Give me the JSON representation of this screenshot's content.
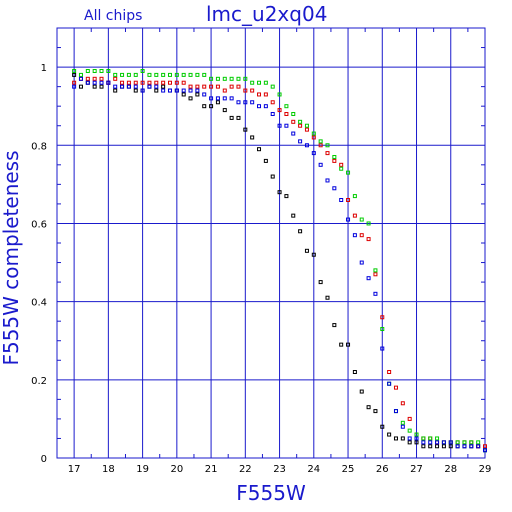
{
  "chart_data": {
    "type": "scatter",
    "title": "lmc_u2xq04",
    "subtitle": "All chips",
    "xlabel": "F555W",
    "ylabel": "F555W completeness",
    "xlim": [
      16.5,
      29
    ],
    "ylim": [
      0,
      1.1
    ],
    "x_ticks": [
      17,
      18,
      19,
      20,
      21,
      22,
      23,
      24,
      25,
      26,
      27,
      28,
      29
    ],
    "y_ticks": [
      0,
      0.2,
      0.4,
      0.6,
      0.8,
      1
    ],
    "y_tick_labels": [
      "0",
      "0.2",
      "0.4",
      "0.6",
      "0.8",
      "1"
    ],
    "grid": true,
    "colors": {
      "grid": "#1a1acc",
      "text": "#1a1acc",
      "black": "#000000",
      "red": "#dd0000",
      "green": "#00cc00",
      "blue": "#0000dd"
    },
    "x": [
      17.0,
      17.2,
      17.4,
      17.6,
      17.8,
      18.0,
      18.2,
      18.4,
      18.6,
      18.8,
      19.0,
      19.2,
      19.4,
      19.6,
      19.8,
      20.0,
      20.2,
      20.4,
      20.6,
      20.8,
      21.0,
      21.2,
      21.4,
      21.6,
      21.8,
      22.0,
      22.2,
      22.4,
      22.6,
      22.8,
      23.0,
      23.2,
      23.4,
      23.6,
      23.8,
      24.0,
      24.2,
      24.4,
      24.6,
      24.8,
      25.0,
      25.2,
      25.4,
      25.6,
      25.8,
      26.0,
      26.2,
      26.4,
      26.6,
      26.8,
      27.0,
      27.2,
      27.4,
      27.6,
      27.8,
      28.0,
      28.2,
      28.4,
      28.6,
      28.8,
      29.0
    ],
    "series": [
      {
        "color": "black",
        "values": [
          0.98,
          0.95,
          0.96,
          0.95,
          0.95,
          0.96,
          0.94,
          0.95,
          0.95,
          0.94,
          0.94,
          0.95,
          0.94,
          0.95,
          0.94,
          0.94,
          0.93,
          0.92,
          0.93,
          0.9,
          0.9,
          0.91,
          0.89,
          0.87,
          0.87,
          0.84,
          0.82,
          0.79,
          0.76,
          0.72,
          0.68,
          0.67,
          0.62,
          0.58,
          0.53,
          0.52,
          0.45,
          0.41,
          0.34,
          0.29,
          0.29,
          0.22,
          0.17,
          0.13,
          0.12,
          0.08,
          0.06,
          0.05,
          0.05,
          0.04,
          0.04,
          0.03,
          0.03,
          0.03,
          0.03,
          0.03,
          0.03,
          0.03,
          0.03,
          0.03,
          0.02
        ]
      },
      {
        "color": "red",
        "values": [
          0.96,
          0.97,
          0.97,
          0.97,
          0.97,
          0.96,
          0.97,
          0.96,
          0.96,
          0.96,
          0.96,
          0.96,
          0.96,
          0.96,
          0.96,
          0.96,
          0.96,
          0.95,
          0.95,
          0.95,
          0.95,
          0.95,
          0.94,
          0.95,
          0.95,
          0.94,
          0.94,
          0.93,
          0.93,
          0.91,
          0.89,
          0.88,
          0.86,
          0.85,
          0.84,
          0.82,
          0.8,
          0.78,
          0.76,
          0.75,
          0.66,
          0.62,
          0.57,
          0.56,
          0.47,
          0.36,
          0.22,
          0.18,
          0.14,
          0.1,
          0.06,
          0.05,
          0.05,
          0.04,
          0.04,
          0.04,
          0.04,
          0.04,
          0.04,
          0.03,
          0.03
        ]
      },
      {
        "color": "green",
        "values": [
          0.99,
          0.98,
          0.99,
          0.99,
          0.99,
          0.99,
          0.98,
          0.98,
          0.98,
          0.98,
          0.99,
          0.98,
          0.98,
          0.98,
          0.98,
          0.98,
          0.98,
          0.98,
          0.98,
          0.98,
          0.97,
          0.97,
          0.97,
          0.97,
          0.97,
          0.97,
          0.96,
          0.96,
          0.96,
          0.95,
          0.93,
          0.9,
          0.88,
          0.86,
          0.85,
          0.83,
          0.81,
          0.8,
          0.77,
          0.74,
          0.73,
          0.67,
          0.61,
          0.6,
          0.48,
          0.33,
          0.19,
          0.12,
          0.09,
          0.07,
          0.06,
          0.05,
          0.05,
          0.05,
          0.04,
          0.04,
          0.04,
          0.04,
          0.04,
          0.04,
          0.02
        ]
      },
      {
        "color": "blue",
        "values": [
          0.95,
          0.97,
          0.96,
          0.96,
          0.96,
          0.96,
          0.95,
          0.95,
          0.95,
          0.95,
          0.94,
          0.95,
          0.95,
          0.94,
          0.94,
          0.94,
          0.94,
          0.94,
          0.94,
          0.93,
          0.92,
          0.92,
          0.92,
          0.92,
          0.91,
          0.91,
          0.91,
          0.9,
          0.9,
          0.88,
          0.85,
          0.85,
          0.83,
          0.81,
          0.8,
          0.78,
          0.75,
          0.71,
          0.69,
          0.66,
          0.61,
          0.57,
          0.5,
          0.46,
          0.42,
          0.28,
          0.19,
          0.12,
          0.08,
          0.05,
          0.05,
          0.04,
          0.04,
          0.04,
          0.04,
          0.04,
          0.03,
          0.03,
          0.03,
          0.03,
          0.02
        ]
      }
    ]
  }
}
